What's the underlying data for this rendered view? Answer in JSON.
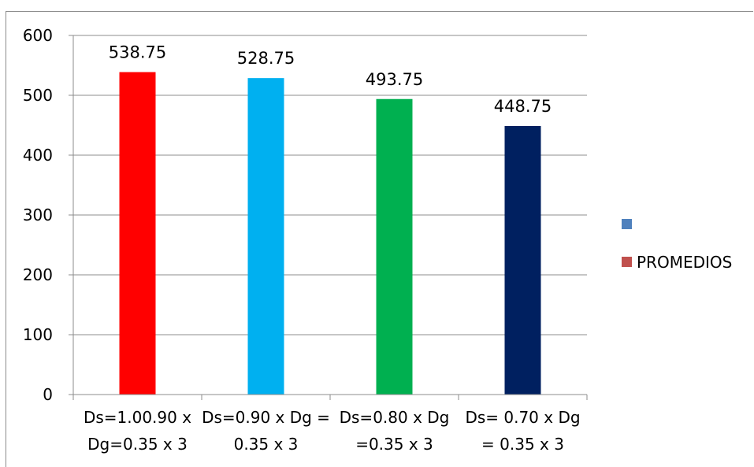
{
  "chart_data": {
    "type": "bar",
    "categories": [
      [
        "Ds=1.00.90 x",
        "Dg=0.35 x 3"
      ],
      [
        "Ds=0.90 x Dg =",
        "0.35 x 3"
      ],
      [
        "Ds=0.80 x Dg",
        "=0.35 x 3"
      ],
      [
        "Ds= 0.70 x Dg",
        "= 0.35 x 3"
      ]
    ],
    "values": [
      538.75,
      528.75,
      493.75,
      448.75
    ],
    "data_labels": [
      "538.75",
      "528.75",
      "493.75",
      "448.75"
    ],
    "bar_colors": [
      "#ff0000",
      "#00b0f0",
      "#00b050",
      "#002060"
    ],
    "ylim": [
      0,
      600
    ],
    "yticks": [
      "0",
      "100",
      "200",
      "300",
      "400",
      "500",
      "600"
    ],
    "grid": true,
    "legend_position": "right",
    "legend": [
      {
        "label": "",
        "color": "#4f81bd"
      },
      {
        "label": "PROMEDIOS",
        "color": "#c0504d"
      }
    ]
  }
}
